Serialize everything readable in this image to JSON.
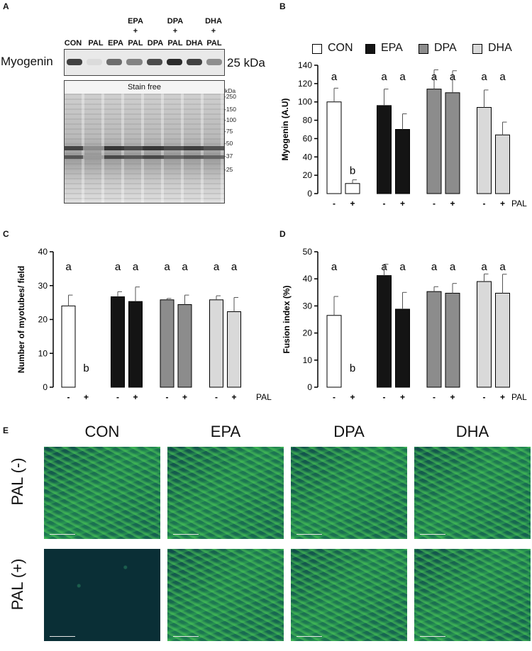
{
  "panel_letters": {
    "a": "A",
    "b": "B",
    "c": "C",
    "d": "D",
    "e": "E"
  },
  "blot": {
    "header_top": [
      {
        "name": "EPA",
        "plus": "+"
      },
      {
        "name": "DPA",
        "plus": "+"
      },
      {
        "name": "DHA",
        "plus": "+"
      }
    ],
    "lanes": [
      "CON",
      "PAL",
      "EPA",
      "PAL",
      "DPA",
      "PAL",
      "DHA",
      "PAL"
    ],
    "band_intensity": [
      0.75,
      0.05,
      0.55,
      0.45,
      0.7,
      0.85,
      0.75,
      0.4
    ],
    "protein_label": "Myogenin",
    "size_label": "25 kDa",
    "stain_title": "Stain free",
    "mw_unit": "kDa",
    "mw_markers": [
      "-250",
      "-150",
      "-100",
      "-75",
      "-50",
      "-37",
      "-25"
    ]
  },
  "legend": [
    {
      "label": "CON",
      "color": "#ffffff"
    },
    {
      "label": "EPA",
      "color": "#141414"
    },
    {
      "label": "DPA",
      "color": "#8c8c8c"
    },
    {
      "label": "DHA",
      "color": "#d9d9d9"
    }
  ],
  "pal_label": "PAL",
  "pal_ticks": [
    "-",
    "+",
    "-",
    "+",
    "-",
    "+",
    "-",
    "+"
  ],
  "chart_data": [
    {
      "type": "bar",
      "panel": "B",
      "ylabel": "Myogenin (A.U)",
      "ylim": [
        0,
        140
      ],
      "yticks": [
        0,
        20,
        40,
        60,
        80,
        100,
        120,
        140
      ],
      "categories": [
        "CON -",
        "CON +",
        "EPA -",
        "EPA +",
        "DPA -",
        "DPA +",
        "DHA -",
        "DHA +"
      ],
      "values": [
        100,
        11,
        96,
        70,
        114,
        110,
        94,
        64
      ],
      "errors": [
        15,
        4,
        18,
        17,
        21,
        24,
        19,
        14
      ],
      "letters": [
        "a",
        "b",
        "a",
        "a",
        "a",
        "a",
        "a",
        "a"
      ]
    },
    {
      "type": "bar",
      "panel": "C",
      "ylabel": "Number of myotubes/ field",
      "ylim": [
        0,
        40
      ],
      "yticks": [
        0,
        10,
        20,
        30,
        40
      ],
      "categories": [
        "CON -",
        "CON +",
        "EPA -",
        "EPA +",
        "DPA -",
        "DPA +",
        "DHA -",
        "DHA +"
      ],
      "values": [
        24,
        0,
        26.7,
        25.3,
        25.8,
        24.4,
        25.8,
        22.3
      ],
      "errors": [
        3.2,
        0,
        1.5,
        4.3,
        0.4,
        2.8,
        1.2,
        4.2
      ],
      "letters": [
        "a",
        "b",
        "a",
        "a",
        "a",
        "a",
        "a",
        "a"
      ]
    },
    {
      "type": "bar",
      "panel": "D",
      "ylabel": "Fusion index (%)",
      "ylim": [
        0,
        50
      ],
      "yticks": [
        0,
        10,
        20,
        30,
        40,
        50
      ],
      "categories": [
        "CON -",
        "CON +",
        "EPA -",
        "EPA +",
        "DPA -",
        "DPA +",
        "DHA -",
        "DHA +"
      ],
      "values": [
        26.5,
        0,
        41.2,
        28.8,
        35.3,
        34.7,
        39.0,
        34.7
      ],
      "errors": [
        7,
        0,
        4.2,
        6.2,
        1.8,
        3.6,
        2.8,
        7
      ],
      "letters": [
        "a",
        "b",
        "a",
        "a",
        "a",
        "a",
        "a",
        "a"
      ]
    }
  ],
  "micrographs": {
    "columns": [
      "CON",
      "EPA",
      "DPA",
      "DHA"
    ],
    "rows": [
      "PAL (-)",
      "PAL (+)"
    ]
  }
}
